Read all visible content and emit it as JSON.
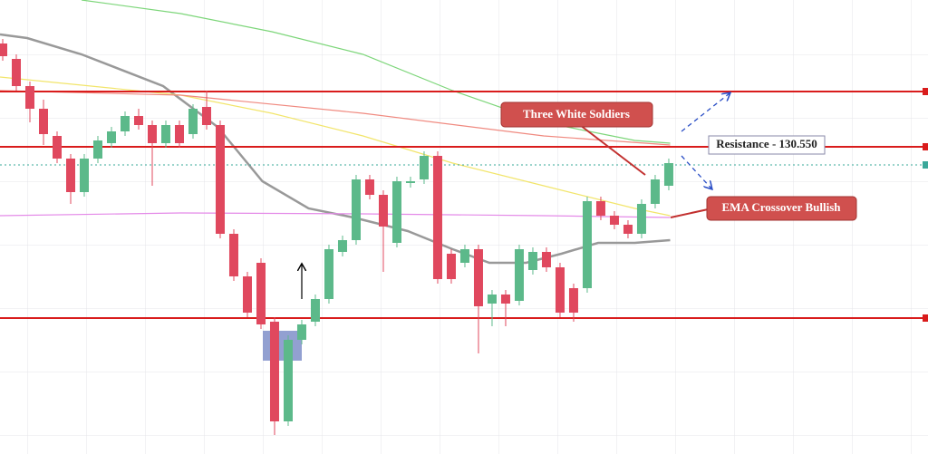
{
  "chart_data": {
    "type": "candlestick",
    "ylim": [
      0,
      501
    ],
    "xlim": [
      -0.2,
      68.07
    ],
    "up_color": "#5cb98a",
    "down_color": "#e0485e",
    "open": [
      453,
      436,
      406,
      381,
      351,
      326,
      289,
      326,
      343,
      356,
      373,
      363,
      343,
      363,
      353,
      383,
      363,
      243,
      196,
      211,
      146,
      36,
      126,
      146,
      171,
      223,
      236,
      303,
      286,
      233,
      299,
      303,
      329,
      221,
      211,
      226,
      166,
      176,
      169,
      203,
      223,
      206,
      183,
      183,
      279,
      263,
      253,
      243,
      276,
      296
    ],
    "close": [
      439,
      406,
      381,
      353,
      326,
      289,
      326,
      346,
      356,
      373,
      363,
      343,
      363,
      343,
      381,
      363,
      243,
      196,
      156,
      143,
      36,
      126,
      143,
      171,
      226,
      236,
      303,
      286,
      251,
      301,
      301,
      329,
      193,
      193,
      226,
      163,
      176,
      166,
      226,
      223,
      206,
      156,
      156,
      279,
      263,
      253,
      243,
      276,
      303,
      321
    ],
    "high": [
      458,
      441,
      411,
      391,
      356,
      331,
      331,
      351,
      361,
      378,
      381,
      368,
      368,
      368,
      386,
      401,
      368,
      248,
      201,
      216,
      151,
      131,
      148,
      176,
      231,
      241,
      308,
      308,
      291,
      306,
      306,
      334,
      334,
      226,
      231,
      231,
      181,
      181,
      231,
      228,
      228,
      211,
      188,
      284,
      284,
      268,
      258,
      281,
      308,
      326
    ],
    "low": [
      434,
      401,
      366,
      341,
      321,
      276,
      284,
      321,
      338,
      351,
      358,
      296,
      338,
      338,
      348,
      358,
      238,
      191,
      151,
      138,
      21,
      31,
      121,
      141,
      166,
      218,
      231,
      281,
      201,
      228,
      294,
      298,
      188,
      188,
      206,
      111,
      141,
      141,
      164,
      198,
      201,
      151,
      146,
      178,
      258,
      248,
      238,
      238,
      271,
      291
    ],
    "overlays": [
      {
        "color": "#999999",
        "x": [
          -0.2,
          1.8,
          5.8,
          11.8,
          15.8,
          19.1,
          22.5,
          25.8,
          29.8,
          33.1,
          35.8,
          38.5,
          41.1,
          43.8,
          46.5,
          49.1
        ],
        "values": [
          463,
          459,
          441,
          406,
          361,
          301,
          271,
          261,
          246,
          226,
          211,
          211,
          221,
          233,
          233,
          236
        ]
      },
      {
        "color": "#f2e56b",
        "x": [
          -0.2,
          6.5,
          13.1,
          19.8,
          26.5,
          33.1,
          39.8,
          46.5,
          49.1
        ],
        "values": [
          416,
          406,
          396,
          376,
          351,
          321,
          296,
          271,
          263
        ]
      },
      {
        "color": "#7dd67a",
        "x": [
          5.8,
          13.1,
          19.8,
          26.5,
          33.1,
          39.8,
          46.5,
          49.1
        ],
        "values": [
          501,
          486,
          466,
          441,
          401,
          366,
          346,
          343
        ]
      },
      {
        "color": "#f08a80",
        "x": [
          -0.2,
          13.1,
          26.5,
          39.8,
          49.1
        ],
        "values": [
          401,
          396,
          376,
          351,
          341
        ]
      },
      {
        "color": "#e48ae8",
        "x": [
          -0.2,
          13.1,
          26.5,
          39.8,
          49.1
        ],
        "values": [
          263,
          266,
          265,
          263,
          261
        ]
      }
    ],
    "levels": [
      400,
      339,
      150
    ],
    "level_color": "#d91c1c",
    "current_price": 319,
    "annotations": [
      "Three White Soldiers",
      "Resistance - 130.550",
      "EMA Crossover Bullish"
    ]
  }
}
